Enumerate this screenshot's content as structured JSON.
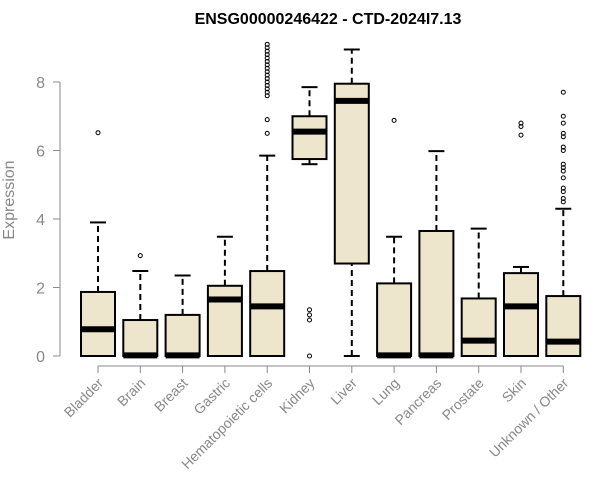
{
  "chart_data": {
    "type": "boxplot",
    "title": "ENSG00000246422 - CTD-2024I7.13",
    "xlabel": "",
    "ylabel": "Expression",
    "ylim": [
      0,
      9.1
    ],
    "yticks": [
      0,
      2,
      4,
      6,
      8
    ],
    "colors": {
      "box_fill": "#EDE6CC",
      "box_stroke": "#000000",
      "axis": "#888888",
      "text": "#888888"
    },
    "categories": [
      "Bladder",
      "Brain",
      "Breast",
      "Gastric",
      "Hematopoietic cells",
      "Kidney",
      "Liver",
      "Lung",
      "Pancreas",
      "Prostate",
      "Skin",
      "Unknown / Other"
    ],
    "boxes": [
      {
        "name": "Bladder",
        "whisker_low": 0,
        "q1": 0,
        "median": 0.78,
        "q3": 1.87,
        "whisker_high": 3.9,
        "outliers": [
          6.52
        ]
      },
      {
        "name": "Brain",
        "whisker_low": 0,
        "q1": 0,
        "median": 0.02,
        "q3": 1.05,
        "whisker_high": 2.48,
        "outliers": [
          2.93
        ]
      },
      {
        "name": "Breast",
        "whisker_low": 0,
        "q1": 0,
        "median": 0.02,
        "q3": 1.2,
        "whisker_high": 2.35,
        "outliers": []
      },
      {
        "name": "Gastric",
        "whisker_low": 0,
        "q1": 0,
        "median": 1.65,
        "q3": 2.05,
        "whisker_high": 3.48,
        "outliers": []
      },
      {
        "name": "Hematopoietic cells",
        "whisker_low": 0,
        "q1": 0,
        "median": 1.45,
        "q3": 2.48,
        "whisker_high": 5.85,
        "outliers": [
          6.5,
          6.9,
          7.6,
          7.7,
          7.8,
          7.9,
          8.0,
          8.1,
          8.2,
          8.3,
          8.4,
          8.5,
          8.6,
          8.7,
          8.8,
          8.9,
          9.0,
          9.1
        ]
      },
      {
        "name": "Kidney",
        "whisker_low": 5.6,
        "q1": 5.75,
        "median": 6.55,
        "q3": 7.0,
        "whisker_high": 7.85,
        "outliers": [
          0.0,
          1.05,
          1.2,
          1.35
        ]
      },
      {
        "name": "Liver",
        "whisker_low": 0,
        "q1": 2.7,
        "median": 7.45,
        "q3": 7.95,
        "whisker_high": 8.95,
        "outliers": []
      },
      {
        "name": "Lung",
        "whisker_low": 0,
        "q1": 0,
        "median": 0.02,
        "q3": 2.12,
        "whisker_high": 3.48,
        "outliers": [
          6.88
        ]
      },
      {
        "name": "Pancreas",
        "whisker_low": 0,
        "q1": 0,
        "median": 0.02,
        "q3": 3.65,
        "whisker_high": 5.98,
        "outliers": []
      },
      {
        "name": "Prostate",
        "whisker_low": 0,
        "q1": 0,
        "median": 0.45,
        "q3": 1.68,
        "whisker_high": 3.72,
        "outliers": []
      },
      {
        "name": "Skin",
        "whisker_low": 0,
        "q1": 0,
        "median": 1.45,
        "q3": 2.42,
        "whisker_high": 2.6,
        "outliers": [
          6.45,
          6.7,
          6.8
        ]
      },
      {
        "name": "Unknown / Other",
        "whisker_low": 0,
        "q1": 0,
        "median": 0.42,
        "q3": 1.75,
        "whisker_high": 4.3,
        "outliers": [
          4.5,
          4.6,
          4.8,
          4.9,
          5.2,
          5.4,
          5.5,
          5.6,
          6.0,
          6.1,
          6.4,
          6.5,
          6.8,
          7.0,
          7.7
        ]
      }
    ]
  }
}
